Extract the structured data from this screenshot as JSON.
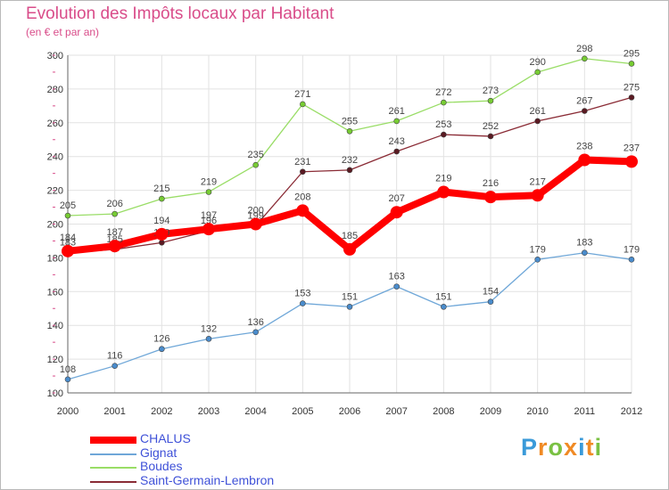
{
  "chart_data": {
    "type": "line",
    "title": "Evolution des Impôts locaux par Habitant",
    "subtitle": "(en € et par an)",
    "x": [
      "2000",
      "2001",
      "2002",
      "2003",
      "2004",
      "2005",
      "2006",
      "2007",
      "2008",
      "2009",
      "2010",
      "2011",
      "2012"
    ],
    "ylim": [
      100,
      300
    ],
    "yticks": [
      100,
      120,
      140,
      160,
      180,
      200,
      220,
      240,
      260,
      280,
      300
    ],
    "grid": true,
    "legend_position": "bottom-left",
    "series": [
      {
        "name": "Saint-Germain-Lembron",
        "color": "#8a2b35",
        "dot": "#5a1a22",
        "values": [
          183,
          185,
          189,
          196,
          199,
          231,
          232,
          243,
          253,
          252,
          261,
          267,
          275
        ]
      },
      {
        "name": "Boudes",
        "color": "#99dd66",
        "dot": "#77cc33",
        "values": [
          205,
          206,
          215,
          219,
          235,
          271,
          255,
          261,
          272,
          273,
          290,
          298,
          295
        ]
      },
      {
        "name": "Gignat",
        "color": "#6fa7d8",
        "dot": "#4a8ccc",
        "values": [
          108,
          116,
          126,
          132,
          136,
          153,
          151,
          163,
          151,
          154,
          179,
          183,
          179
        ]
      },
      {
        "name": "CHALUS",
        "color": "#ff0000",
        "dot": "#ff0000",
        "values": [
          184,
          187,
          194,
          197,
          200,
          208,
          185,
          207,
          219,
          216,
          217,
          238,
          237
        ]
      }
    ],
    "legend_order": [
      "CHALUS",
      "Gignat",
      "Boudes",
      "Saint-Germain-Lembron"
    ]
  },
  "brand": {
    "letters": [
      "P",
      "r",
      "o",
      "x",
      "i",
      "t",
      "i"
    ],
    "colors": [
      "#3a9ad9",
      "#f08a24",
      "#7ac143",
      "#f08a24",
      "#3a9ad9",
      "#f08a24",
      "#7ac143"
    ]
  }
}
